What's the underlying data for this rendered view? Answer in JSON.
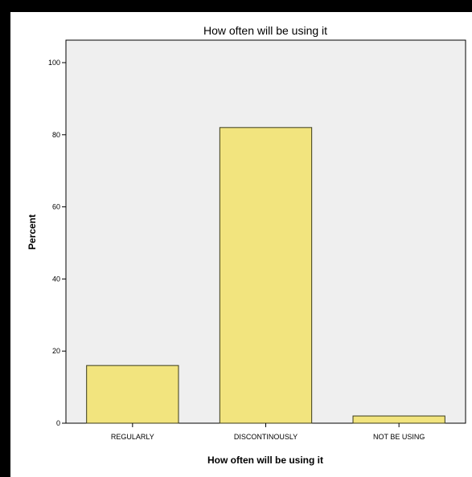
{
  "chart_data": {
    "type": "bar",
    "title": "How often will be using it",
    "xlabel": "How often will be using it",
    "ylabel": "Percent",
    "categories": [
      "REGULARLY",
      "DISCONTINOUSLY",
      "NOT BE USING"
    ],
    "values": [
      16,
      82,
      2
    ],
    "ylim": [
      0,
      100
    ],
    "yticks": [
      "0",
      "20",
      "40",
      "60",
      "80",
      "100"
    ],
    "grid": false,
    "colors": {
      "bar_fill": "#f2e47e",
      "bar_stroke": "#3a3a1a",
      "plot_bg": "#efefef"
    }
  }
}
